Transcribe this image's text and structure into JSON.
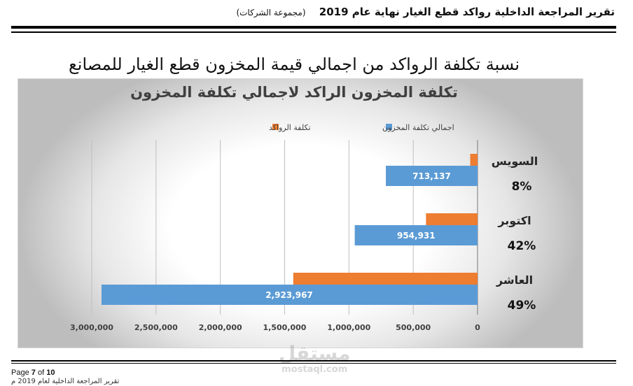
{
  "header": {
    "title": "تقرير المراجعة الداخلية رواكد قطع الغيار نهاية عام 2019",
    "subtitle": "(مجموعة الشركات)"
  },
  "slide_title": "نسبة تكلفة الرواكد من اجمالي قيمة المخزون قطع الغيار للمصانع",
  "footer": {
    "page_prefix": "Page",
    "page_current": "7",
    "page_of": "of",
    "page_total": "10",
    "text": "تقرير المراجعة الداخلية لعام 2019 م"
  },
  "watermark": {
    "arabic": "مستقل",
    "latin": "mostaql.com"
  },
  "colors": {
    "total": "#5B9BD5",
    "stagnant": "#ED7D31",
    "grid": "#bfbfbf"
  },
  "chart_data": {
    "type": "bar",
    "orientation": "horizontal",
    "title": "تكلفة المخزون الراكد لاجمالي تكلفة المخزون",
    "categories": [
      "السويس",
      "اكتوبر",
      "العاشر"
    ],
    "percent_labels": [
      "8%",
      "42%",
      "49%"
    ],
    "series": [
      {
        "name": "اجمالي تكلفة المخزون",
        "values": [
          713137,
          954931,
          2923967
        ],
        "labels": [
          "713,137",
          "954,931",
          "2,923,967"
        ]
      },
      {
        "name": "تكلفة الرواكد",
        "values": [
          57000,
          401000,
          1433000
        ]
      }
    ],
    "xlim": [
      0,
      3000000
    ],
    "ticks": [
      0,
      500000,
      1000000,
      1500000,
      2000000,
      2500000,
      3000000
    ],
    "tick_labels": [
      "0",
      "500,000",
      "1,000,000",
      "1,500,000",
      "2,000,000",
      "2,500,000",
      "3,000,000"
    ],
    "x_reversed": true,
    "grid": true,
    "legend_position": "top"
  }
}
